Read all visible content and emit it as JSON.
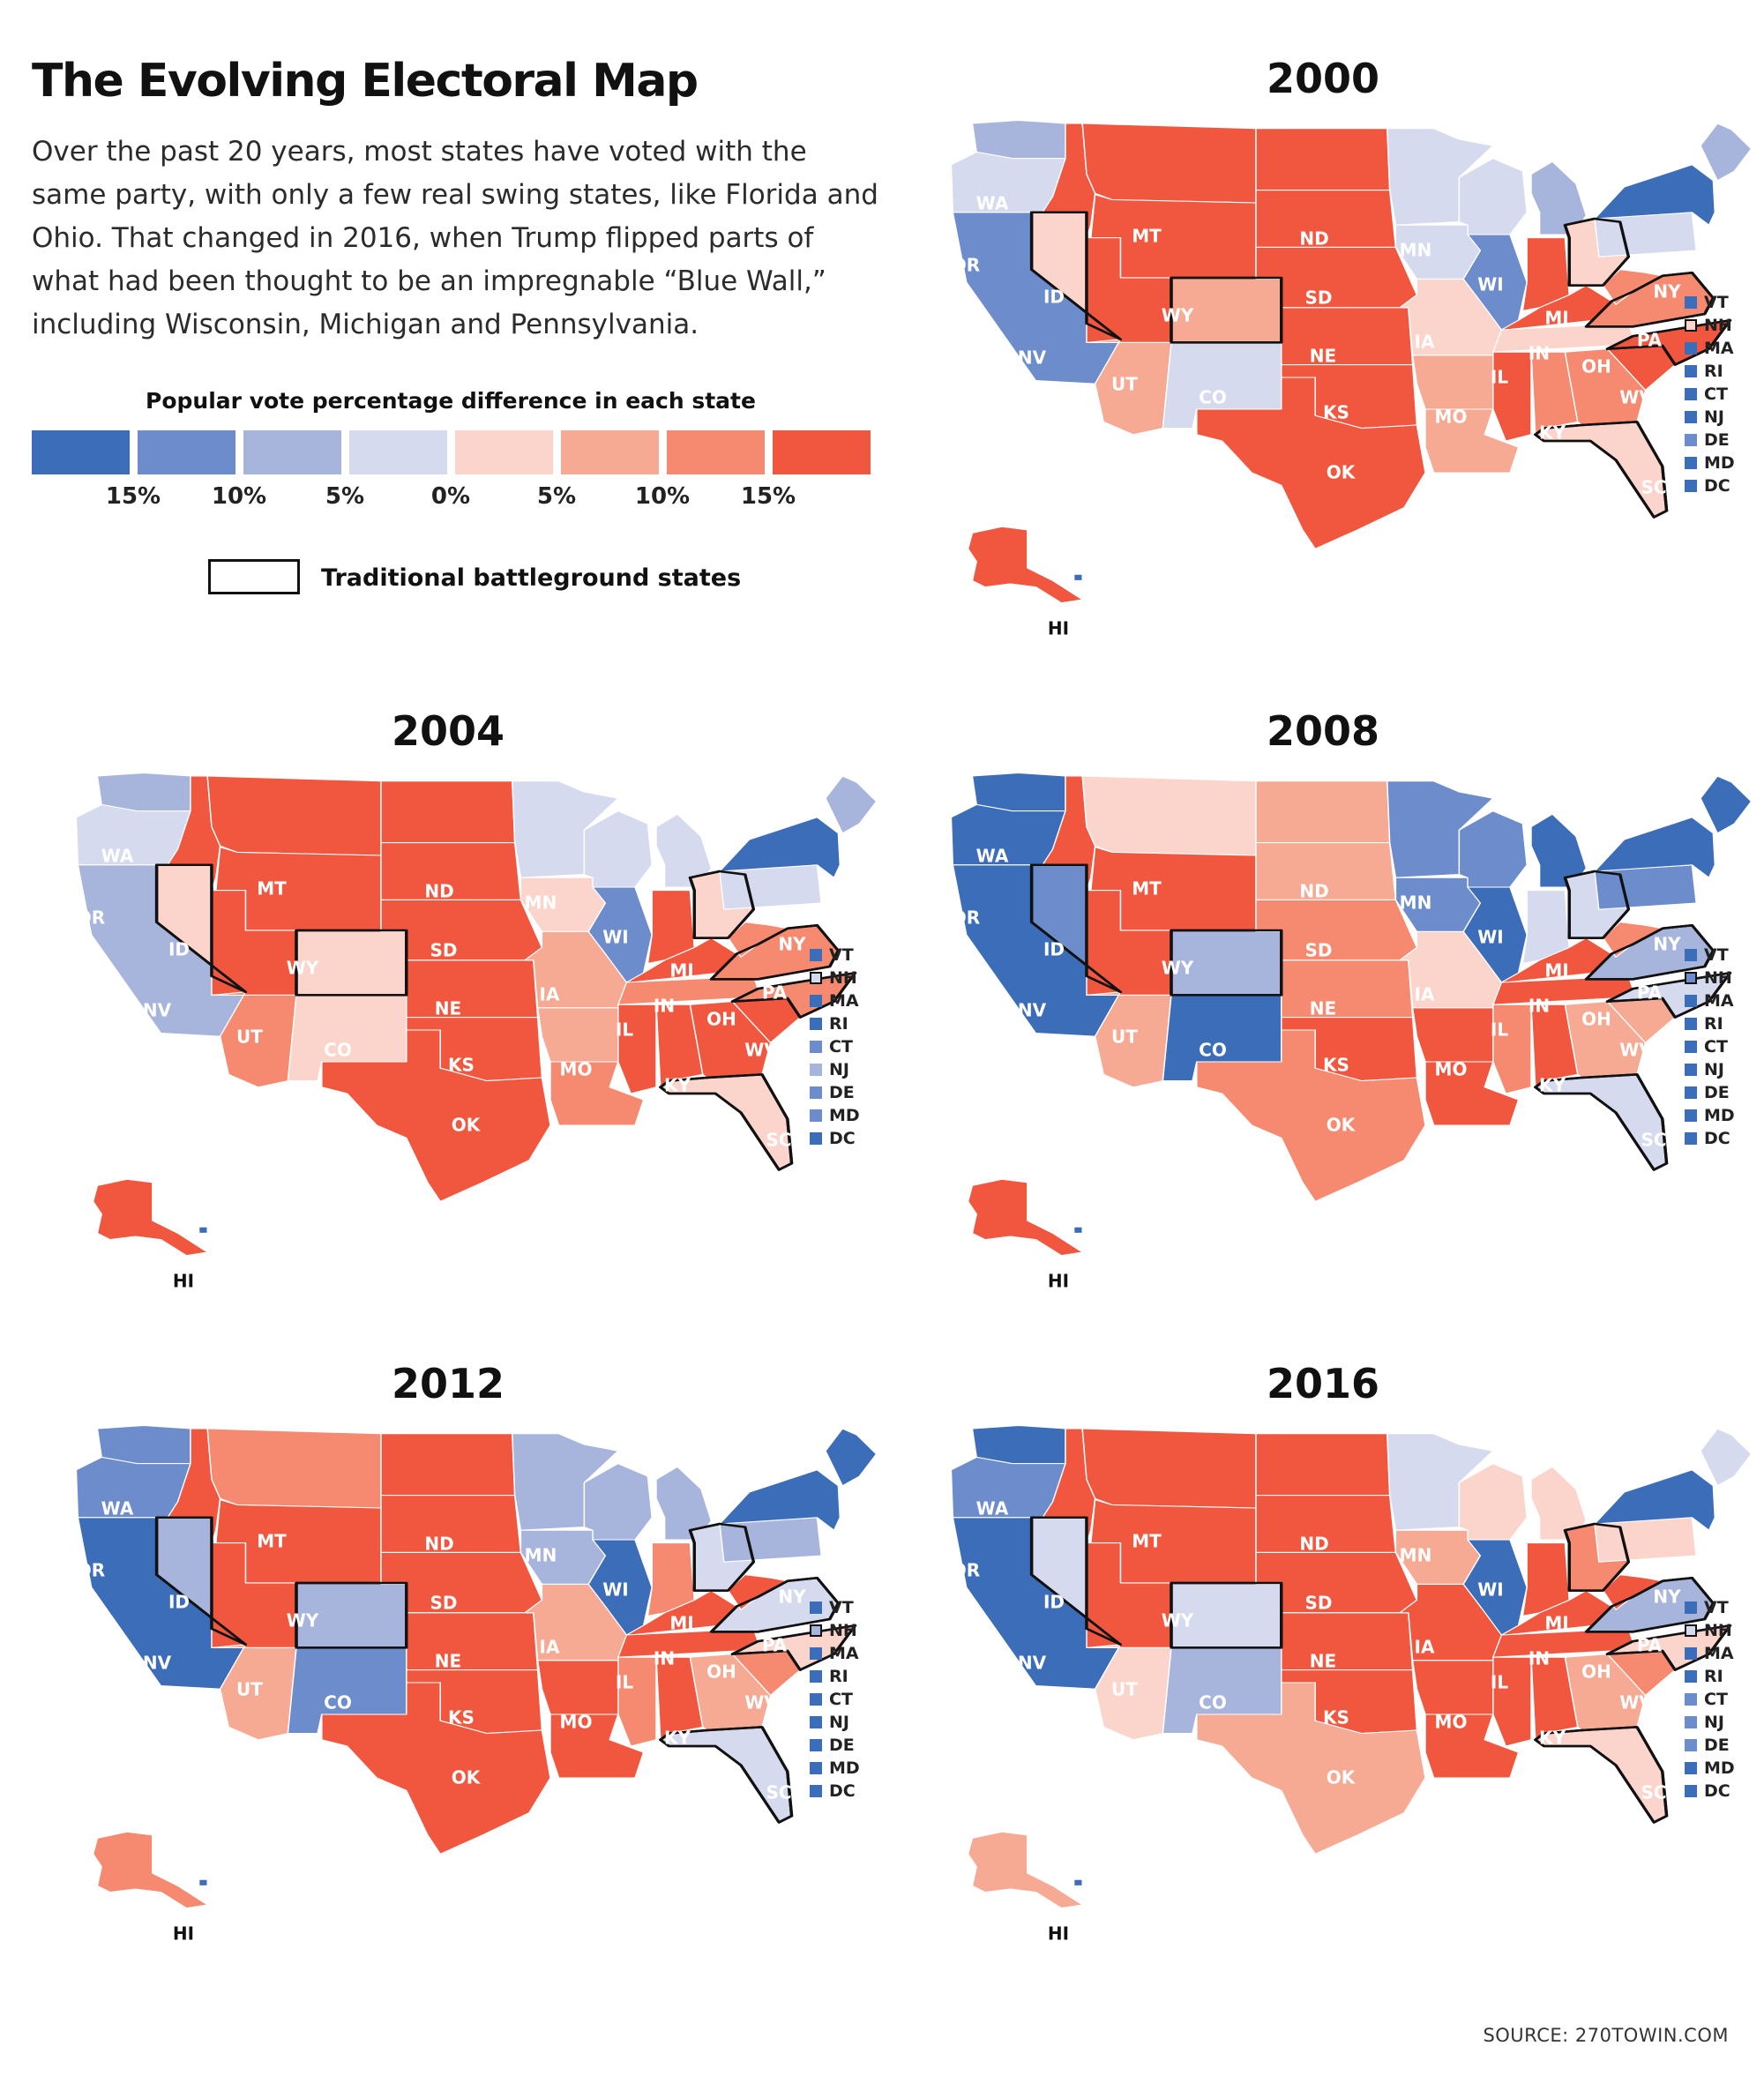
{
  "title": "The Evolving Electoral Map",
  "intro": "Over the past 20 years, most states have voted with the same party, with only a few real swing states, like Florida and Ohio. That changed in 2016, when Trump flipped parts of what had been thought to be an impregnable “Blue Wall,” including Wisconsin, Michigan and Pennsylvania.",
  "legend": {
    "title": "Popular vote percentage difference in each state",
    "colors": [
      "#3c6db8",
      "#6d8ccc",
      "#a7b4dc",
      "#d5daee",
      "#fbd5cb",
      "#f6a993",
      "#f58a70",
      "#f1573f"
    ],
    "ticks": [
      "15%",
      "10%",
      "5%",
      "0%",
      "5%",
      "10%",
      "15%"
    ],
    "battleground_label": "Traditional battleground states"
  },
  "source": "SOURCE: 270TOWIN.COM",
  "ne_states": [
    "VT",
    "NH",
    "MA",
    "RI",
    "CT",
    "NJ",
    "DE",
    "MD",
    "DC"
  ],
  "maps": [
    {
      "year": "2000",
      "states": {
        "WA": "#a7b4dc",
        "OR": "#d5daee",
        "CA": "#6d8ccc",
        "NV": "#fbd5cb",
        "ID": "#f1573f",
        "MT": "#f1573f",
        "WY": "#f1573f",
        "UT": "#f1573f",
        "AZ": "#f6a993",
        "CO": "#f6a993",
        "NM": "#d5daee",
        "ND": "#f1573f",
        "SD": "#f1573f",
        "NE": "#f1573f",
        "KS": "#f1573f",
        "OK": "#f1573f",
        "TX": "#f1573f",
        "MN": "#d5daee",
        "IA": "#d5daee",
        "MO": "#fbd5cb",
        "AR": "#f6a993",
        "LA": "#f6a993",
        "WI": "#d5daee",
        "IL": "#6d8ccc",
        "MI": "#a7b4dc",
        "IN": "#f1573f",
        "OH": "#fbd5cb",
        "KY": "#f1573f",
        "TN": "#fbd5cb",
        "MS": "#f1573f",
        "AL": "#f58a70",
        "GA": "#f58a70",
        "FL": "#fbd5cb",
        "SC": "#f1573f",
        "NC": "#f1573f",
        "VA": "#f58a70",
        "WV": "#f58a70",
        "PA": "#d5daee",
        "NY": "#3c6db8",
        "ME": "#a7b4dc",
        "AK": "#f1573f",
        "HI": "#3c6db8"
      },
      "ne": [
        "#3c6db8",
        "#fbd5cb",
        "#3c6db8",
        "#3c6db8",
        "#3c6db8",
        "#3c6db8",
        "#6d8ccc",
        "#3c6db8",
        "#3c6db8"
      ]
    },
    {
      "year": "2004",
      "states": {
        "WA": "#a7b4dc",
        "OR": "#d5daee",
        "CA": "#a7b4dc",
        "NV": "#fbd5cb",
        "ID": "#f1573f",
        "MT": "#f1573f",
        "WY": "#f1573f",
        "UT": "#f1573f",
        "AZ": "#f58a70",
        "CO": "#fbd5cb",
        "NM": "#fbd5cb",
        "ND": "#f1573f",
        "SD": "#f1573f",
        "NE": "#f1573f",
        "KS": "#f1573f",
        "OK": "#f1573f",
        "TX": "#f1573f",
        "MN": "#d5daee",
        "IA": "#fbd5cb",
        "MO": "#f6a993",
        "AR": "#f6a993",
        "LA": "#f58a70",
        "WI": "#d5daee",
        "IL": "#6d8ccc",
        "MI": "#d5daee",
        "IN": "#f1573f",
        "OH": "#fbd5cb",
        "KY": "#f1573f",
        "TN": "#f58a70",
        "MS": "#f1573f",
        "AL": "#f1573f",
        "GA": "#f1573f",
        "FL": "#fbd5cb",
        "SC": "#f1573f",
        "NC": "#f58a70",
        "VA": "#f58a70",
        "WV": "#f58a70",
        "PA": "#d5daee",
        "NY": "#3c6db8",
        "ME": "#a7b4dc",
        "AK": "#f1573f",
        "HI": "#3c6db8"
      },
      "ne": [
        "#3c6db8",
        "#d5daee",
        "#3c6db8",
        "#3c6db8",
        "#6d8ccc",
        "#a7b4dc",
        "#6d8ccc",
        "#6d8ccc",
        "#3c6db8"
      ]
    },
    {
      "year": "2008",
      "states": {
        "WA": "#3c6db8",
        "OR": "#3c6db8",
        "CA": "#3c6db8",
        "NV": "#6d8ccc",
        "ID": "#f1573f",
        "MT": "#fbd5cb",
        "WY": "#f1573f",
        "UT": "#f1573f",
        "AZ": "#f6a993",
        "CO": "#a7b4dc",
        "NM": "#3c6db8",
        "ND": "#f6a993",
        "SD": "#f6a993",
        "NE": "#f58a70",
        "KS": "#f58a70",
        "OK": "#f1573f",
        "TX": "#f58a70",
        "MN": "#6d8ccc",
        "IA": "#6d8ccc",
        "MO": "#fbd5cb",
        "AR": "#f1573f",
        "LA": "#f1573f",
        "WI": "#6d8ccc",
        "IL": "#3c6db8",
        "MI": "#3c6db8",
        "IN": "#d5daee",
        "OH": "#d5daee",
        "KY": "#f1573f",
        "TN": "#f1573f",
        "MS": "#f58a70",
        "AL": "#f1573f",
        "GA": "#f6a993",
        "FL": "#d5daee",
        "SC": "#f6a993",
        "NC": "#d5daee",
        "VA": "#a7b4dc",
        "WV": "#f58a70",
        "PA": "#6d8ccc",
        "NY": "#3c6db8",
        "ME": "#3c6db8",
        "AK": "#f1573f",
        "HI": "#3c6db8"
      },
      "ne": [
        "#3c6db8",
        "#6d8ccc",
        "#3c6db8",
        "#3c6db8",
        "#3c6db8",
        "#3c6db8",
        "#3c6db8",
        "#3c6db8",
        "#3c6db8"
      ]
    },
    {
      "year": "2012",
      "states": {
        "WA": "#6d8ccc",
        "OR": "#6d8ccc",
        "CA": "#3c6db8",
        "NV": "#a7b4dc",
        "ID": "#f1573f",
        "MT": "#f58a70",
        "WY": "#f1573f",
        "UT": "#f1573f",
        "AZ": "#f6a993",
        "CO": "#a7b4dc",
        "NM": "#6d8ccc",
        "ND": "#f1573f",
        "SD": "#f1573f",
        "NE": "#f1573f",
        "KS": "#f1573f",
        "OK": "#f1573f",
        "TX": "#f1573f",
        "MN": "#a7b4dc",
        "IA": "#a7b4dc",
        "MO": "#f6a993",
        "AR": "#f1573f",
        "LA": "#f1573f",
        "WI": "#a7b4dc",
        "IL": "#3c6db8",
        "MI": "#a7b4dc",
        "IN": "#f58a70",
        "OH": "#d5daee",
        "KY": "#f1573f",
        "TN": "#f1573f",
        "MS": "#f58a70",
        "AL": "#f1573f",
        "GA": "#f6a993",
        "FL": "#d5daee",
        "SC": "#f58a70",
        "NC": "#fbd5cb",
        "VA": "#d5daee",
        "WV": "#f1573f",
        "PA": "#a7b4dc",
        "NY": "#3c6db8",
        "ME": "#3c6db8",
        "AK": "#f58a70",
        "HI": "#3c6db8"
      },
      "ne": [
        "#3c6db8",
        "#a7b4dc",
        "#3c6db8",
        "#3c6db8",
        "#3c6db8",
        "#3c6db8",
        "#3c6db8",
        "#3c6db8",
        "#3c6db8"
      ]
    },
    {
      "year": "2016",
      "states": {
        "WA": "#3c6db8",
        "OR": "#6d8ccc",
        "CA": "#3c6db8",
        "NV": "#d5daee",
        "ID": "#f1573f",
        "MT": "#f1573f",
        "WY": "#f1573f",
        "UT": "#f1573f",
        "AZ": "#fbd5cb",
        "CO": "#d5daee",
        "NM": "#a7b4dc",
        "ND": "#f1573f",
        "SD": "#f1573f",
        "NE": "#f1573f",
        "KS": "#f1573f",
        "OK": "#f1573f",
        "TX": "#f6a993",
        "MN": "#d5daee",
        "IA": "#f6a993",
        "MO": "#f1573f",
        "AR": "#f1573f",
        "LA": "#f1573f",
        "WI": "#fbd5cb",
        "IL": "#3c6db8",
        "MI": "#fbd5cb",
        "IN": "#f1573f",
        "OH": "#f58a70",
        "KY": "#f1573f",
        "TN": "#f1573f",
        "MS": "#f1573f",
        "AL": "#f1573f",
        "GA": "#f6a993",
        "FL": "#fbd5cb",
        "SC": "#f58a70",
        "NC": "#fbd5cb",
        "VA": "#a7b4dc",
        "WV": "#f1573f",
        "PA": "#fbd5cb",
        "NY": "#3c6db8",
        "ME": "#d5daee",
        "AK": "#f6a993",
        "HI": "#3c6db8"
      },
      "ne": [
        "#3c6db8",
        "#d5daee",
        "#3c6db8",
        "#3c6db8",
        "#6d8ccc",
        "#6d8ccc",
        "#6d8ccc",
        "#3c6db8",
        "#3c6db8"
      ]
    }
  ]
}
